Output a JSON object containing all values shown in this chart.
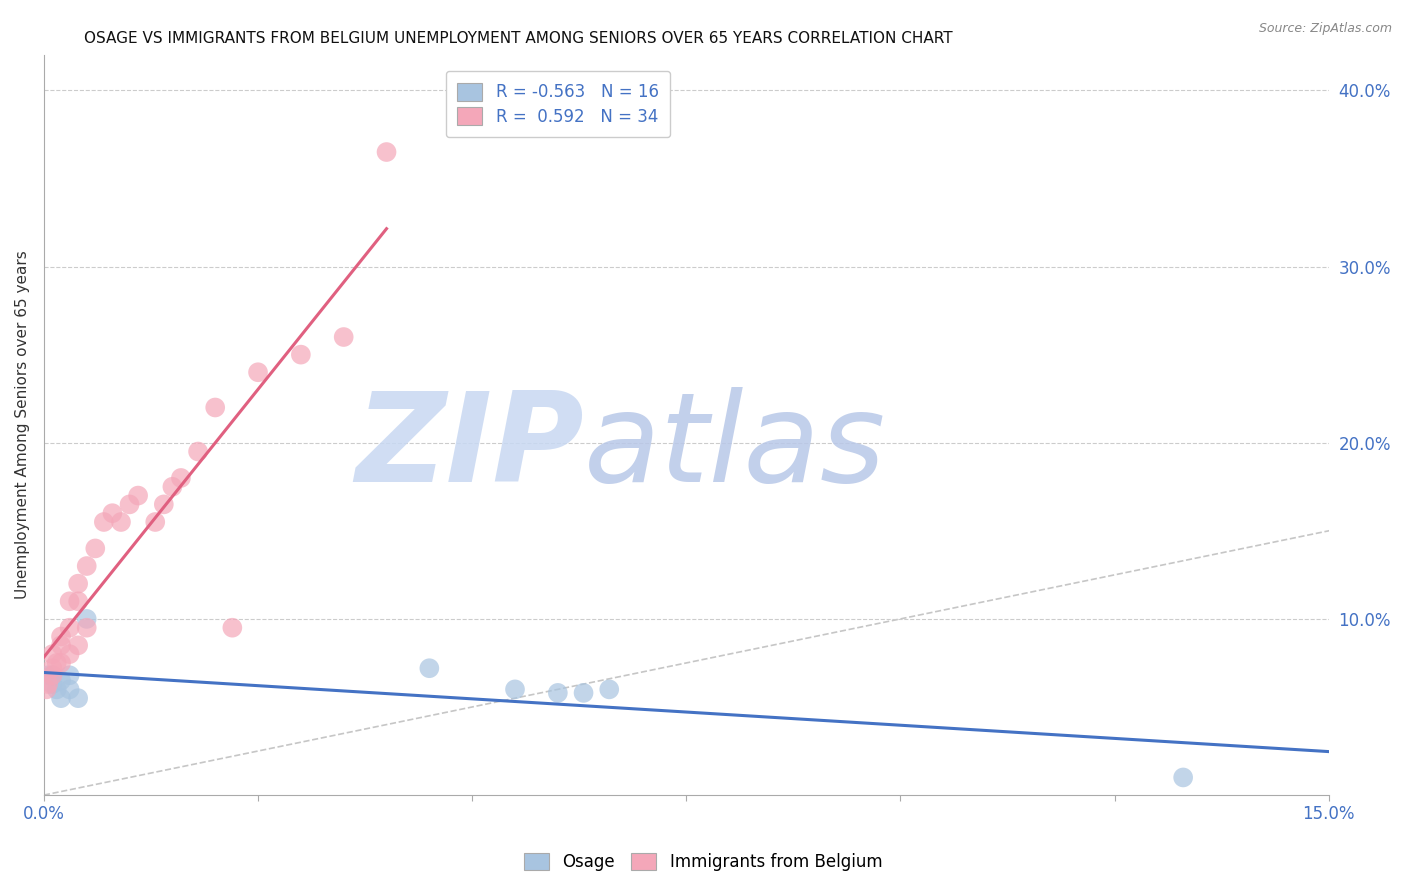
{
  "title": "OSAGE VS IMMIGRANTS FROM BELGIUM UNEMPLOYMENT AMONG SENIORS OVER 65 YEARS CORRELATION CHART",
  "source": "Source: ZipAtlas.com",
  "ylabel": "Unemployment Among Seniors over 65 years",
  "xlim": [
    0.0,
    0.15
  ],
  "ylim": [
    0.0,
    0.42
  ],
  "xticks": [
    0.0,
    0.025,
    0.05,
    0.075,
    0.1,
    0.125,
    0.15
  ],
  "xtick_labels": [
    "0.0%",
    "",
    "",
    "",
    "",
    "",
    "15.0%"
  ],
  "yticks_right": [
    0.1,
    0.2,
    0.3,
    0.4
  ],
  "ytick_right_labels": [
    "10.0%",
    "20.0%",
    "30.0%",
    "40.0%"
  ],
  "osage_x": [
    0.0005,
    0.001,
    0.001,
    0.0015,
    0.002,
    0.002,
    0.003,
    0.003,
    0.004,
    0.005,
    0.045,
    0.055,
    0.06,
    0.063,
    0.066,
    0.133
  ],
  "osage_y": [
    0.068,
    0.068,
    0.063,
    0.06,
    0.065,
    0.055,
    0.068,
    0.06,
    0.055,
    0.1,
    0.072,
    0.06,
    0.058,
    0.058,
    0.06,
    0.01
  ],
  "belgium_x": [
    0.0003,
    0.0005,
    0.001,
    0.001,
    0.001,
    0.0015,
    0.002,
    0.002,
    0.002,
    0.003,
    0.003,
    0.003,
    0.004,
    0.004,
    0.004,
    0.005,
    0.005,
    0.006,
    0.007,
    0.008,
    0.009,
    0.01,
    0.011,
    0.013,
    0.014,
    0.015,
    0.016,
    0.018,
    0.02,
    0.022,
    0.025,
    0.03,
    0.035,
    0.04
  ],
  "belgium_y": [
    0.06,
    0.063,
    0.068,
    0.072,
    0.08,
    0.075,
    0.085,
    0.09,
    0.075,
    0.11,
    0.095,
    0.08,
    0.12,
    0.11,
    0.085,
    0.13,
    0.095,
    0.14,
    0.155,
    0.16,
    0.155,
    0.165,
    0.17,
    0.155,
    0.165,
    0.175,
    0.18,
    0.195,
    0.22,
    0.095,
    0.24,
    0.25,
    0.26,
    0.365
  ],
  "osage_color": "#a8c4e0",
  "belgium_color": "#f4a7b9",
  "osage_line_color": "#4472c4",
  "belgium_line_color": "#e06080",
  "osage_R": -0.563,
  "osage_N": 16,
  "belgium_R": 0.592,
  "belgium_N": 34,
  "background_color": "#ffffff",
  "grid_color": "#cccccc",
  "diagonal_line_color": "#c0c0c0",
  "watermark_zip_color": "#c8d8f2",
  "watermark_atlas_color": "#b8c8e8"
}
